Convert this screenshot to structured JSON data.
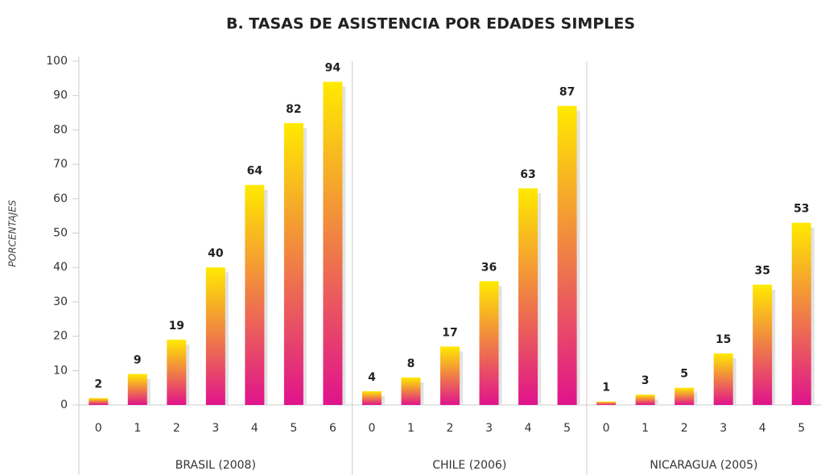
{
  "chart_data": {
    "type": "bar",
    "title": "B. TASAS DE ASISTENCIA POR EDADES SIMPLES",
    "y_label": "PORCENTAJES",
    "groups": [
      {
        "label": "BRASIL (2008)",
        "categories": [
          "0",
          "1",
          "2",
          "3",
          "4",
          "5",
          "6"
        ],
        "values": [
          2,
          9,
          19,
          40,
          64,
          82,
          94
        ]
      },
      {
        "label": "CHILE (2006)",
        "categories": [
          "0",
          "1",
          "2",
          "3",
          "4",
          "5"
        ],
        "values": [
          4,
          8,
          17,
          36,
          63,
          87
        ]
      },
      {
        "label": "NICARAGUA (2005)",
        "categories": [
          "0",
          "1",
          "2",
          "3",
          "4",
          "5"
        ],
        "values": [
          1,
          3,
          5,
          15,
          35,
          53
        ]
      }
    ],
    "ylim": [
      0,
      100
    ],
    "yticks": [
      0,
      10,
      20,
      30,
      40,
      50,
      60,
      70,
      80,
      90,
      100
    ],
    "gradient": {
      "top": "#ffea00",
      "bottom": "#e0138c"
    },
    "shadow_color": "#e2e2e2"
  }
}
